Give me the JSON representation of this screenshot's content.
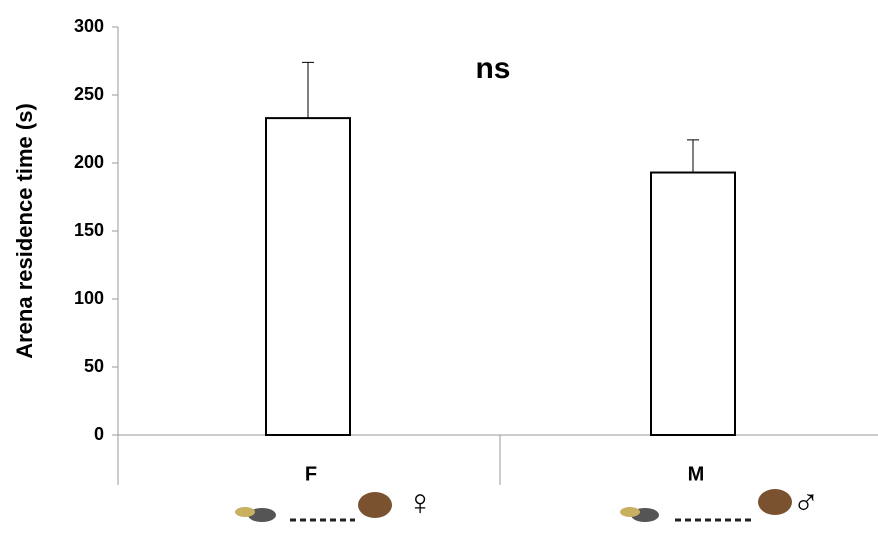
{
  "chart_data": {
    "type": "bar",
    "y_label": "Arena residence time (s)",
    "categories": [
      "F",
      "M"
    ],
    "values": [
      233,
      193
    ],
    "errors": [
      41,
      24
    ],
    "category_symbols": [
      "♀",
      "♂"
    ],
    "annotation": "ns",
    "color": "#ffffff",
    "ylim": [
      0,
      300
    ],
    "yticks": [
      0,
      50,
      100,
      150,
      200,
      250,
      300
    ],
    "grid": false
  }
}
